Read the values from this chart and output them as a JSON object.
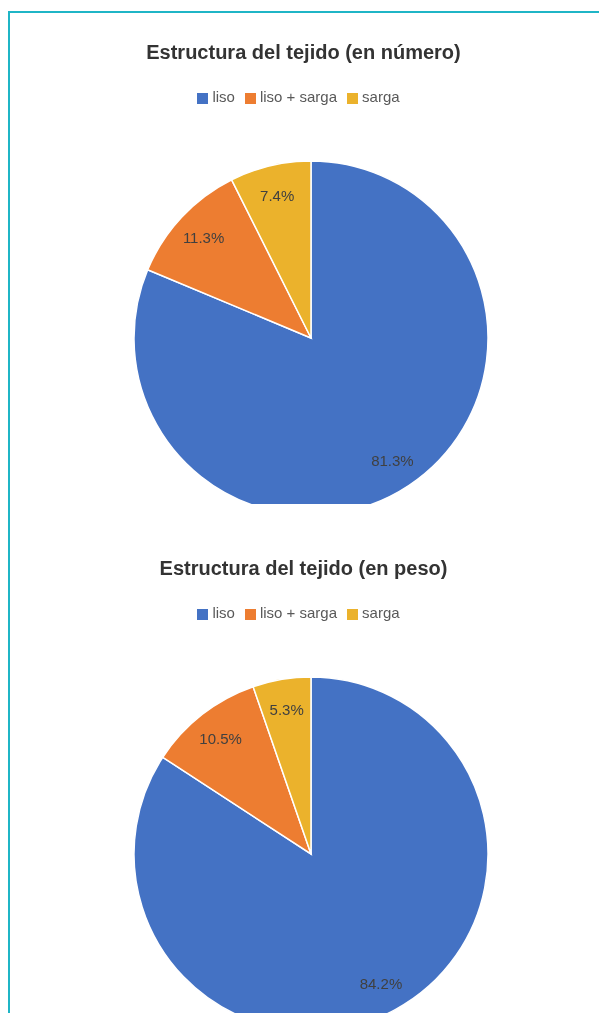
{
  "chart_data": [
    {
      "type": "pie",
      "title": "Estructura del tejido (en número)",
      "categories": [
        "liso",
        "liso + sarga",
        "sarga"
      ],
      "values": [
        81.3,
        11.3,
        7.4
      ],
      "colors": [
        "#4472c4",
        "#ed7d31",
        "#ebb22c"
      ],
      "value_labels": [
        "81.3%",
        "11.3%",
        "7.4%"
      ],
      "legend": "top"
    },
    {
      "type": "pie",
      "title": "Estructura del tejido (en peso)",
      "categories": [
        "liso",
        "liso + sarga",
        "sarga"
      ],
      "values": [
        84.2,
        10.5,
        5.3
      ],
      "colors": [
        "#4472c4",
        "#ed7d31",
        "#ebb22c"
      ],
      "value_labels": [
        "84.2%",
        "10.5%",
        "5.3%"
      ],
      "legend": "top"
    }
  ]
}
